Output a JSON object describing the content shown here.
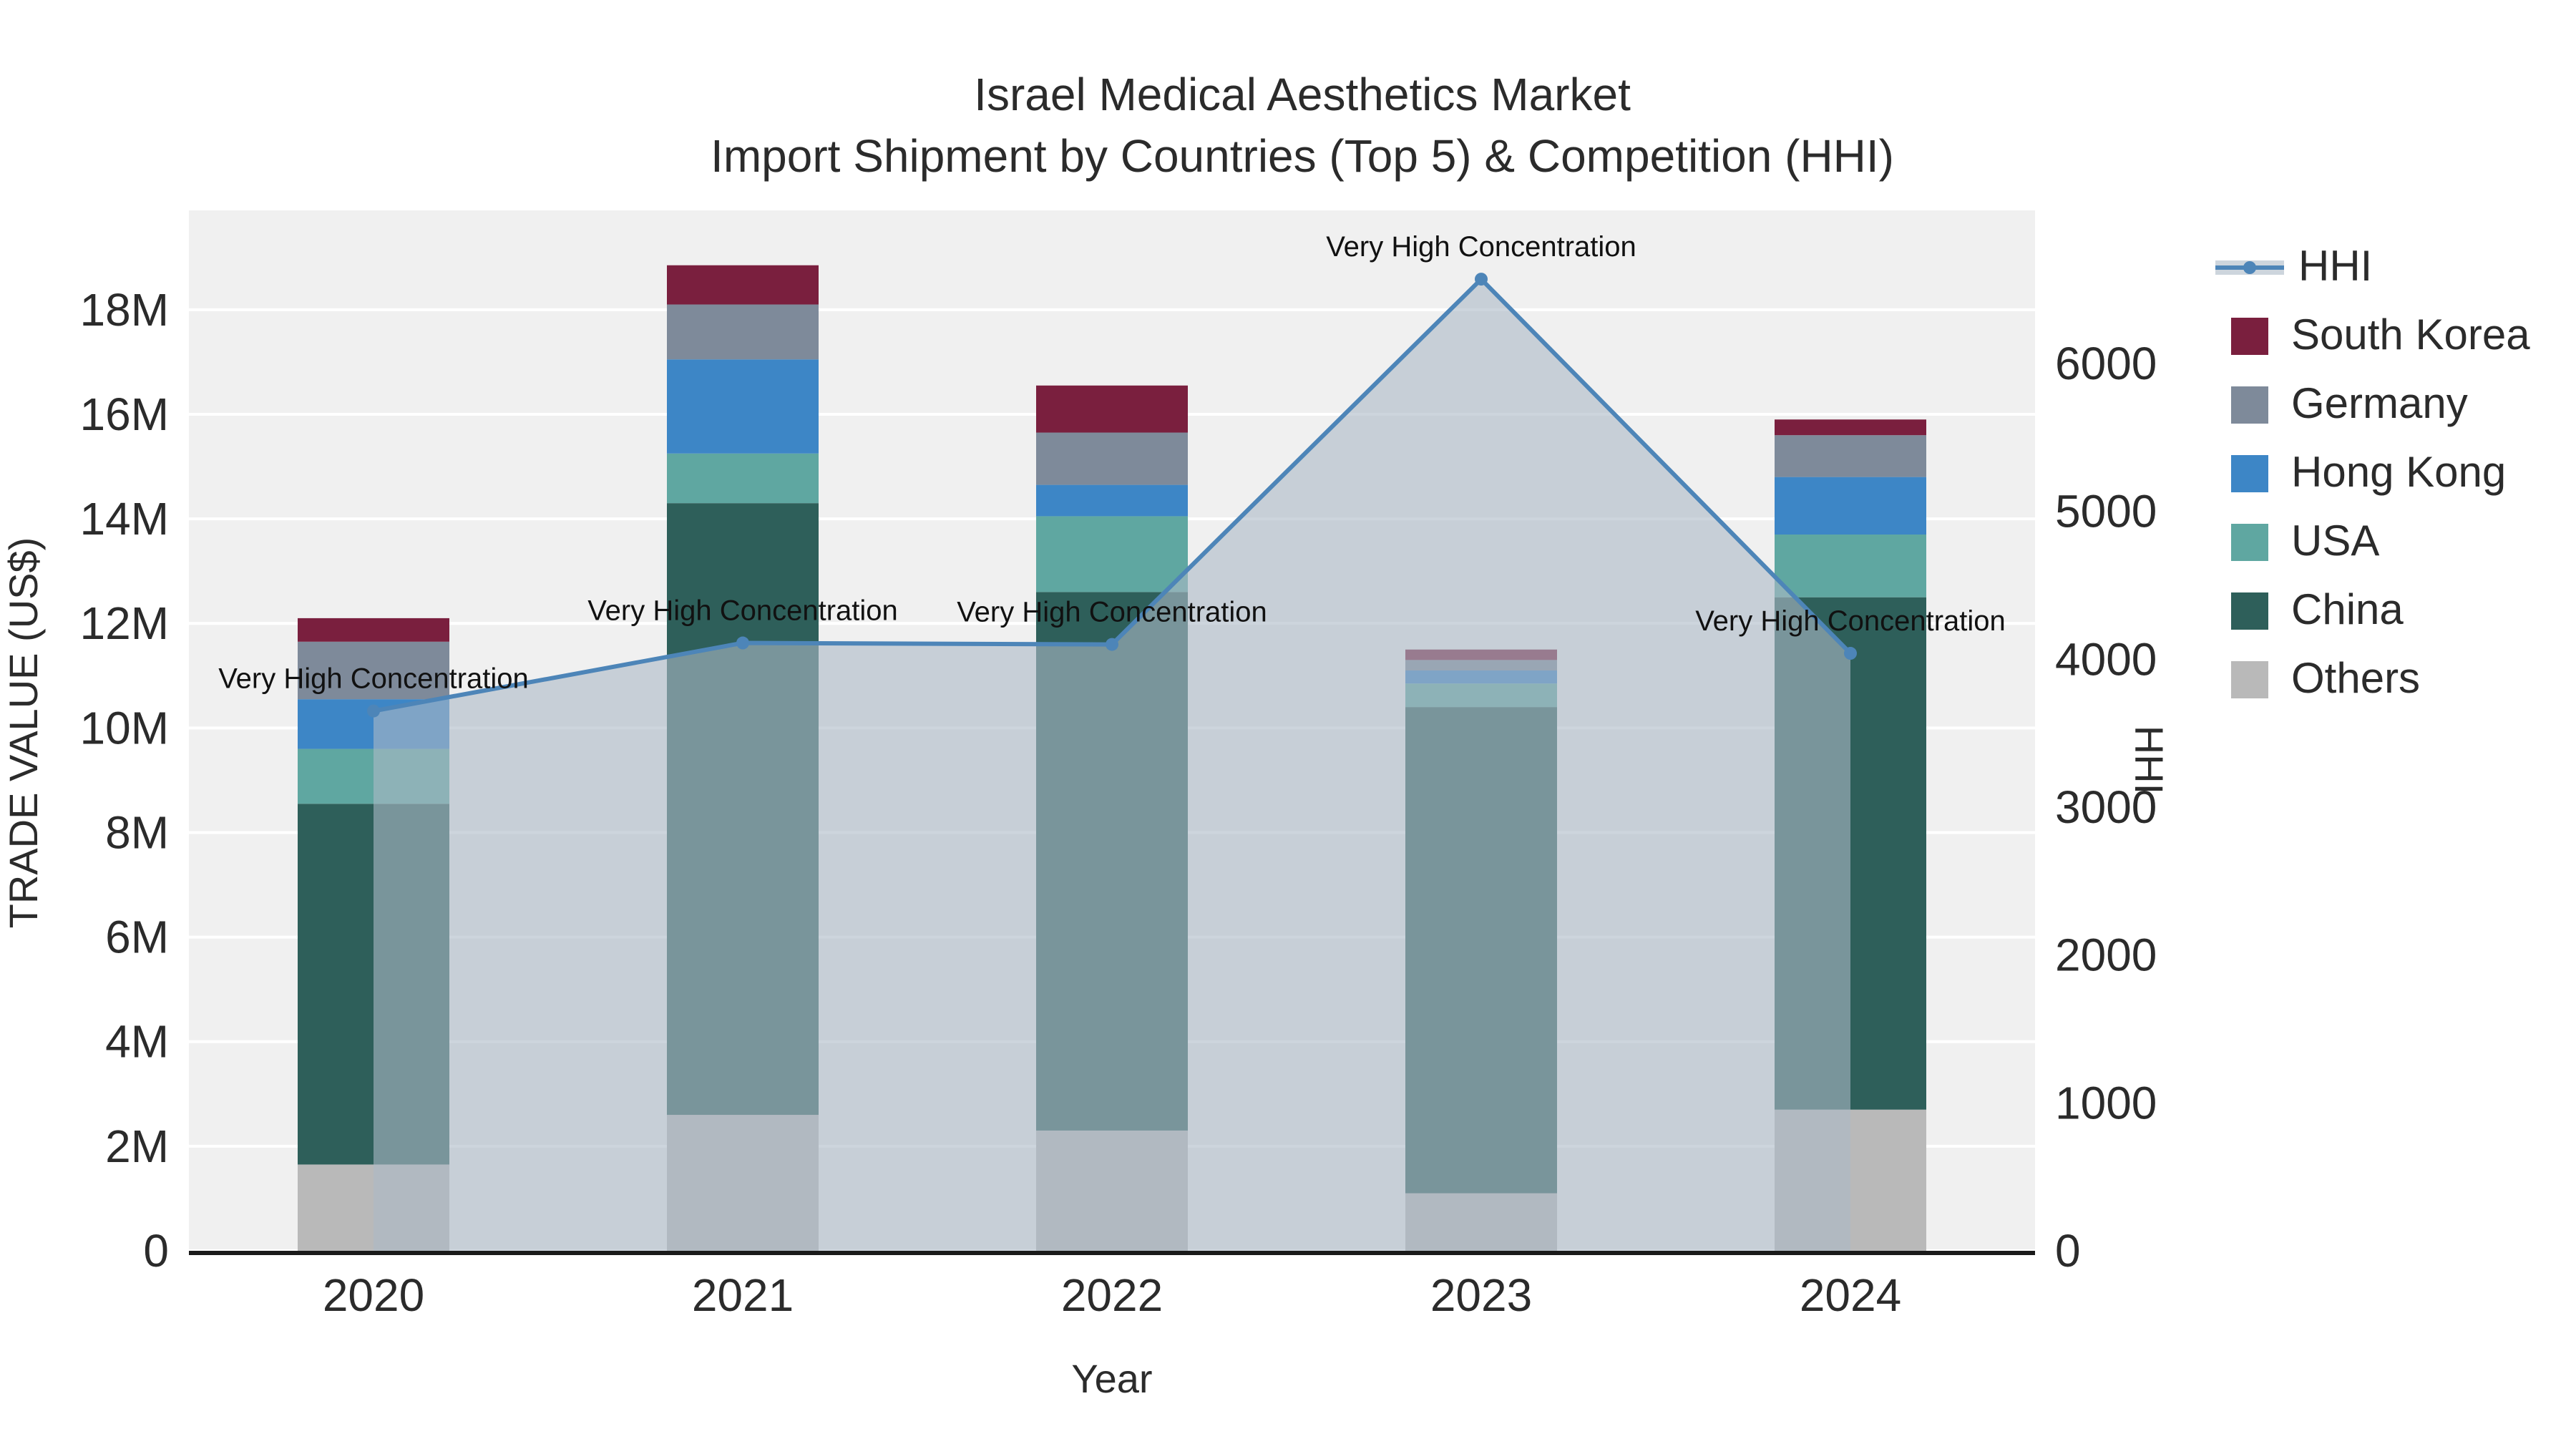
{
  "chart_data": {
    "type": "bar",
    "subtype": "stacked-bars-with-line-and-area",
    "title": "Israel Medical Aesthetics Market",
    "subtitle": "Import Shipment by Countries (Top 5) & Competition (HHI)",
    "xlabel": "Year",
    "categories": [
      "2020",
      "2021",
      "2022",
      "2023",
      "2024"
    ],
    "bar_unit": "US$ millions",
    "bar_series": [
      {
        "name": "Others",
        "color": "#b9b9b9",
        "values_musd": [
          1.65,
          2.6,
          2.3,
          1.1,
          2.7
        ]
      },
      {
        "name": "China",
        "color": "#2e5f5a",
        "values_musd": [
          6.9,
          11.7,
          10.3,
          9.3,
          9.8
        ]
      },
      {
        "name": "USA",
        "color": "#5fa7a1",
        "values_musd": [
          1.05,
          0.95,
          1.45,
          0.45,
          1.2
        ]
      },
      {
        "name": "Hong Kong",
        "color": "#3d86c6",
        "values_musd": [
          0.95,
          1.8,
          0.6,
          0.25,
          1.1
        ]
      },
      {
        "name": "Germany",
        "color": "#7e8a9a",
        "values_musd": [
          1.1,
          1.05,
          1.0,
          0.2,
          0.8
        ]
      },
      {
        "name": "South Korea",
        "color": "#7a1f3e",
        "values_musd": [
          0.45,
          0.75,
          0.9,
          0.2,
          0.3
        ]
      }
    ],
    "bar_totals_musd": [
      12.1,
      18.85,
      16.55,
      11.5,
      15.9
    ],
    "line_series": {
      "name": "HHI",
      "axis": "right",
      "values": [
        3650,
        4110,
        4100,
        6570,
        4040
      ],
      "color": "#4d85b8",
      "area_fill": "rgba(171,185,198,0.6)"
    },
    "annotations": [
      "Very High Concentration",
      "Very High Concentration",
      "Very High Concentration",
      "Very High Concentration",
      "Very High Concentration"
    ],
    "y_axis_left": {
      "title": "TRADE VALUE (US$)",
      "tick_values_m": [
        0,
        2,
        4,
        6,
        8,
        10,
        12,
        14,
        16,
        18
      ],
      "tick_labels": [
        "0",
        "2M",
        "4M",
        "6M",
        "8M",
        "10M",
        "12M",
        "14M",
        "16M",
        "18M"
      ],
      "range_m": [
        0,
        19.9
      ]
    },
    "y_axis_right": {
      "title": "HHI",
      "tick_values": [
        0,
        1000,
        2000,
        3000,
        4000,
        5000,
        6000
      ],
      "tick_labels": [
        "0",
        "1000",
        "2000",
        "3000",
        "4000",
        "5000",
        "6000"
      ],
      "range": [
        0,
        7035
      ]
    },
    "legend": [
      {
        "label": "HHI",
        "type": "line",
        "color": "#4d85b8",
        "area": "rgba(171,185,198,0.6)"
      },
      {
        "label": "South Korea",
        "type": "square",
        "color": "#7a1f3e"
      },
      {
        "label": "Germany",
        "type": "square",
        "color": "#7e8a9a"
      },
      {
        "label": "Hong Kong",
        "type": "square",
        "color": "#3d86c6"
      },
      {
        "label": "USA",
        "type": "square",
        "color": "#5fa7a1"
      },
      {
        "label": "China",
        "type": "square",
        "color": "#2e5f5a"
      },
      {
        "label": "Others",
        "type": "square",
        "color": "#b9b9b9"
      }
    ],
    "legend_position": "right"
  },
  "colors": {
    "page_bg": "#ffffff",
    "plot_bg": "#f0f0f0",
    "grid": "#ffffff",
    "axis_line": "#1a1a1a",
    "text": "#2b2b2b",
    "annotation_text": "#111111"
  }
}
